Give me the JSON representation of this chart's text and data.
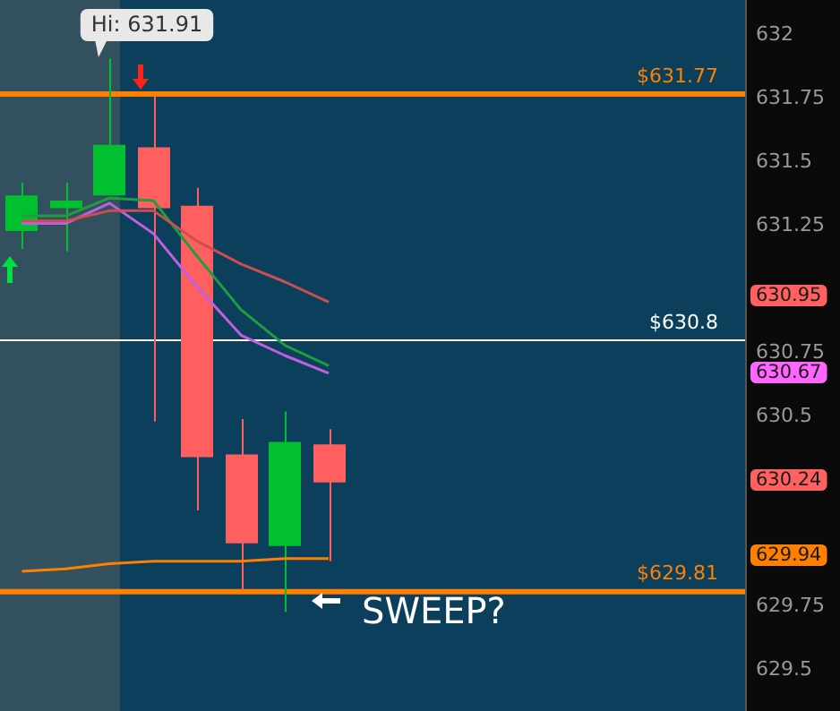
{
  "chart_data": {
    "type": "candlestick",
    "categories": [
      null,
      null,
      null,
      null,
      null,
      null,
      null,
      null,
      null,
      null,
      null,
      null,
      null,
      null,
      null,
      null,
      null
    ],
    "ohlc": [
      [
        631.23,
        631.42,
        631.16,
        631.37
      ],
      [
        631.32,
        631.42,
        631.15,
        631.35
      ],
      [
        631.37,
        631.91,
        631.37,
        631.57
      ],
      [
        631.56,
        631.76,
        630.48,
        631.32
      ],
      [
        631.33,
        631.4,
        630.13,
        630.34
      ],
      [
        630.35,
        630.49,
        629.82,
        630.0
      ],
      [
        629.99,
        630.52,
        629.73,
        630.4
      ],
      [
        630.39,
        630.45,
        629.93,
        630.24
      ],
      null,
      null,
      null,
      null,
      null,
      null,
      null,
      null,
      null
    ],
    "colors": [
      "#00c030",
      "#00c030",
      "#00c030",
      "#ff5f5f",
      "#ff5f5f",
      "#ff5f5f",
      "#00c030",
      "#ff5f5f",
      null,
      null,
      null,
      null,
      null,
      null,
      null,
      null,
      null
    ],
    "series": [
      {
        "type": "line",
        "color": "#c85050",
        "values": [
          631.27,
          631.27,
          631.31,
          631.31,
          631.19,
          631.1,
          631.03,
          630.95,
          null,
          null,
          null,
          null,
          null,
          null,
          null,
          null,
          null
        ]
      },
      {
        "type": "line",
        "color": "#1e9e3e",
        "values": [
          631.29,
          631.29,
          631.36,
          631.35,
          631.13,
          630.92,
          630.78,
          630.7,
          null,
          null,
          null,
          null,
          null,
          null,
          null,
          null,
          null
        ]
      },
      {
        "type": "line",
        "color": "#c060e0",
        "values": [
          631.26,
          631.26,
          631.34,
          631.22,
          631.01,
          630.82,
          630.74,
          630.67,
          null,
          null,
          null,
          null,
          null,
          null,
          null,
          null,
          null
        ]
      },
      {
        "type": "line",
        "color": "#ff8000",
        "values": [
          629.89,
          629.9,
          629.92,
          629.93,
          629.93,
          629.93,
          629.94,
          629.94,
          null,
          null,
          null,
          null,
          null,
          null,
          null,
          null,
          null
        ]
      }
    ],
    "ylim": [
      629.34,
      632.14
    ],
    "yticks": [
      629.5,
      629.75,
      630.5,
      630.75,
      631.25,
      631.5,
      631.75,
      632
    ],
    "tick_labels": "y",
    "ref_lines": [
      {
        "axis": "y",
        "value": 631.77,
        "label": "$631.77",
        "color": "#ff8000"
      },
      {
        "axis": "y",
        "value": 630.8,
        "label": "$630.8",
        "color": "#ffffff"
      },
      {
        "axis": "y",
        "value": 629.81,
        "label": "$629.81",
        "color": "#ff8000"
      }
    ],
    "annotations": [
      "Hi: 631.91",
      "SWEEP?",
      "630.95",
      "630.67",
      "630.24",
      "629.94"
    ]
  }
}
